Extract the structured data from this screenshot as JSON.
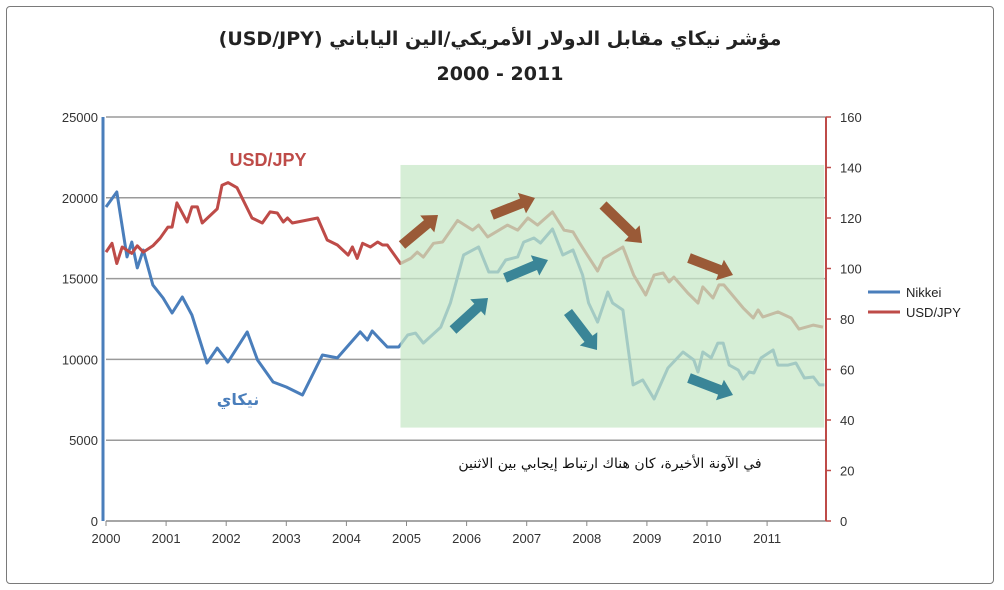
{
  "chart_data": {
    "type": "line",
    "title": "مؤشر نيكاي مقابل الدولار الأمريكي/الين الياباني (USD/JPY)",
    "subtitle": "2000 - 2011",
    "x_ticks": [
      "2000",
      "2001",
      "2002",
      "2003",
      "2004",
      "2005",
      "2006",
      "2007",
      "2008",
      "2009",
      "2010",
      "2011"
    ],
    "xlim": [
      2000,
      2011.98
    ],
    "y_left": {
      "lim": [
        0,
        25000
      ],
      "ticks": [
        "0",
        "5000",
        "10000",
        "15000",
        "20000",
        "25000"
      ],
      "color": "#4a7ebb"
    },
    "y_right": {
      "lim": [
        0,
        160
      ],
      "ticks": [
        "0",
        "20",
        "40",
        "60",
        "80",
        "100",
        "120",
        "140",
        "160"
      ],
      "color": "#be4b48"
    },
    "grid": true,
    "legend_position": "right",
    "series": [
      {
        "name": "Nikkei",
        "axis": "left",
        "color": "#4a7ebb",
        "label": "نيكاي",
        "x": [
          2000.0,
          2000.18,
          2000.35,
          2000.43,
          2000.52,
          2000.62,
          2000.78,
          2000.95,
          2001.1,
          2001.27,
          2001.43,
          2001.68,
          2001.85,
          2002.03,
          2002.35,
          2002.52,
          2002.78,
          2003.0,
          2003.27,
          2003.6,
          2003.85,
          2004.23,
          2004.35,
          2004.43,
          2004.68,
          2004.87,
          2005.02,
          2005.15,
          2005.28,
          2005.57,
          2005.73,
          2005.95,
          2006.2,
          2006.37,
          2006.52,
          2006.65,
          2006.85,
          2006.95,
          2007.12,
          2007.23,
          2007.43,
          2007.6,
          2007.77,
          2007.93,
          2008.03,
          2008.18,
          2008.35,
          2008.43,
          2008.6,
          2008.77,
          2008.93,
          2009.12,
          2009.35,
          2009.6,
          2009.78,
          2009.85,
          2009.93,
          2010.07,
          2010.18,
          2010.27,
          2010.37,
          2010.52,
          2010.6,
          2010.7,
          2010.78,
          2010.9,
          2011.1,
          2011.18,
          2011.35,
          2011.48,
          2011.62,
          2011.77,
          2011.87,
          2011.95
        ],
        "y": [
          19430,
          20360,
          16340,
          17260,
          15660,
          16770,
          14600,
          13800,
          12870,
          13860,
          12750,
          9780,
          10700,
          9840,
          11700,
          9960,
          8600,
          8290,
          7800,
          10270,
          10090,
          11700,
          11200,
          11760,
          10770,
          10770,
          11510,
          11630,
          11010,
          12000,
          13490,
          16460,
          16960,
          15410,
          15410,
          16150,
          16340,
          17260,
          17510,
          17200,
          18070,
          16460,
          16770,
          15220,
          13490,
          12310,
          14170,
          13490,
          13060,
          8420,
          8730,
          7550,
          9470,
          10460,
          9960,
          9220,
          10460,
          10090,
          11010,
          11010,
          9650,
          9340,
          8790,
          9220,
          9160,
          10090,
          10580,
          9650,
          9650,
          9780,
          8850,
          8910,
          8420,
          8420
        ]
      },
      {
        "name": "USD/JPY",
        "axis": "right",
        "color": "#be4b48",
        "label": "USD/JPY",
        "x": [
          2000.0,
          2000.1,
          2000.18,
          2000.27,
          2000.43,
          2000.52,
          2000.62,
          2000.78,
          2000.9,
          2001.03,
          2001.1,
          2001.18,
          2001.35,
          2001.43,
          2001.52,
          2001.6,
          2001.85,
          2001.93,
          2002.03,
          2002.18,
          2002.43,
          2002.6,
          2002.73,
          2002.85,
          2002.95,
          2003.02,
          2003.1,
          2003.52,
          2003.68,
          2003.85,
          2004.03,
          2004.1,
          2004.18,
          2004.27,
          2004.4,
          2004.52,
          2004.6,
          2004.68,
          2004.9,
          2005.07,
          2005.18,
          2005.28,
          2005.45,
          2005.6,
          2005.85,
          2006.1,
          2006.2,
          2006.35,
          2006.68,
          2006.85,
          2007.02,
          2007.18,
          2007.43,
          2007.62,
          2007.77,
          2007.87,
          2008.03,
          2008.18,
          2008.28,
          2008.6,
          2008.78,
          2008.98,
          2009.12,
          2009.27,
          2009.37,
          2009.45,
          2009.68,
          2009.85,
          2009.93,
          2010.1,
          2010.2,
          2010.28,
          2010.6,
          2010.77,
          2010.85,
          2010.93,
          2011.18,
          2011.4,
          2011.53,
          2011.77,
          2011.93
        ],
        "y": [
          106.5,
          110,
          102,
          108.5,
          106,
          109,
          106.5,
          109,
          112,
          116.4,
          116.4,
          126,
          118.4,
          124.4,
          124.4,
          118,
          123.6,
          133,
          134,
          132,
          120,
          118,
          122.4,
          122,
          118.4,
          120,
          118,
          120,
          111.3,
          109.3,
          105.3,
          108.5,
          104,
          110,
          108.5,
          110.5,
          109.3,
          109.3,
          102,
          104,
          106.5,
          104.5,
          110,
          110.5,
          119,
          115.2,
          117.2,
          112.5,
          117.2,
          115.2,
          120,
          117.2,
          122.4,
          115.2,
          114.5,
          110.5,
          104.5,
          99,
          104,
          108.5,
          97.4,
          89.5,
          97.4,
          98.2,
          94.7,
          96.6,
          90.3,
          86.3,
          92.7,
          88.3,
          93.5,
          93.5,
          84.4,
          80.4,
          83.6,
          80.8,
          82.8,
          80.4,
          76,
          77.6,
          76.8
        ]
      }
    ],
    "highlight_region": {
      "x": [
        2004.9,
        2011.95
      ],
      "y_right": [
        37,
        141
      ],
      "color": "#c6e8c6"
    },
    "arrows": {
      "usdjpy_color": "#9a5a37",
      "nikkei_color": "#3a8597"
    },
    "annotation": "في الآونة الأخيرة، كان هناك ارتباط إيجابي بين الاثنين"
  }
}
